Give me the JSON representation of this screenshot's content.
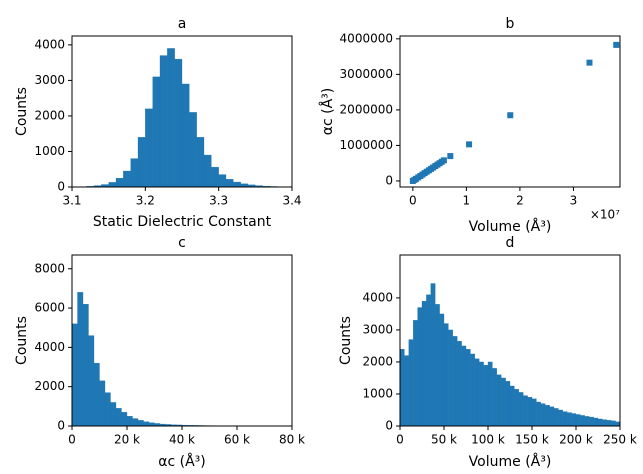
{
  "chart_data": [
    {
      "type": "histogram",
      "title": "a",
      "xlabel": "Static Dielectric Constant",
      "ylabel": "Counts",
      "color": "#1f77b4",
      "bins": [
        3.1,
        3.11,
        3.12,
        3.13,
        3.14,
        3.15,
        3.16,
        3.17,
        3.18,
        3.19,
        3.2,
        3.21,
        3.22,
        3.23,
        3.24,
        3.25,
        3.26,
        3.27,
        3.28,
        3.29,
        3.3,
        3.31,
        3.32,
        3.33,
        3.34,
        3.35,
        3.36,
        3.37,
        3.38,
        3.39,
        3.4
      ],
      "values": [
        5,
        10,
        20,
        40,
        70,
        130,
        250,
        450,
        800,
        1400,
        2200,
        3100,
        3700,
        3900,
        3600,
        2900,
        2100,
        1400,
        900,
        560,
        350,
        220,
        140,
        90,
        60,
        40,
        25,
        15,
        10,
        5
      ],
      "xlim": [
        3.1,
        3.4
      ],
      "xticks": [
        3.1,
        3.2,
        3.3,
        3.4
      ],
      "ylim": [
        0,
        4250
      ],
      "yticks": [
        0,
        1000,
        2000,
        3000,
        4000
      ]
    },
    {
      "type": "scatter",
      "title": "b",
      "xlabel": "Volume (Å³)",
      "ylabel": "αc (Å³)",
      "annotation": "×10⁷",
      "color": "#1f77b4",
      "x": [
        0,
        300000,
        600000,
        1000000,
        1400000,
        1800000,
        2200000,
        2600000,
        3000000,
        3400000,
        3800000,
        4200000,
        4600000,
        5000000,
        5400000,
        5800000,
        7000000,
        10500000,
        18200000,
        33000000,
        38000000
      ],
      "y": [
        0,
        30000,
        60000,
        100000,
        140000,
        180000,
        220000,
        260000,
        300000,
        340000,
        380000,
        420000,
        460000,
        500000,
        540000,
        580000,
        700000,
        1030000,
        1850000,
        3330000,
        3830000
      ],
      "xlim": [
        -2400000,
        38700000
      ],
      "xticks": [
        0,
        {
          "value": 10000000,
          "label": "1"
        },
        {
          "value": 20000000,
          "label": "2"
        },
        {
          "value": 30000000,
          "label": "3"
        }
      ],
      "ylim": [
        -170000,
        4080000
      ],
      "yticks": [
        0,
        1000000,
        2000000,
        3000000,
        4000000
      ]
    },
    {
      "type": "histogram",
      "title": "c",
      "xlabel": "αc (Å³)",
      "ylabel": "Counts",
      "color": "#1f77b4",
      "bins": [
        0,
        2000,
        4000,
        6000,
        8000,
        10000,
        12000,
        14000,
        16000,
        18000,
        20000,
        22000,
        24000,
        26000,
        28000,
        30000,
        32000,
        34000,
        36000,
        38000,
        40000,
        42000,
        44000,
        46000,
        48000,
        50000,
        52000,
        54000,
        56000,
        58000,
        60000,
        62000,
        64000,
        66000,
        68000,
        70000,
        72000,
        74000,
        76000,
        78000,
        80000
      ],
      "values": [
        5200,
        6800,
        6200,
        4600,
        3200,
        2300,
        1700,
        1200,
        900,
        700,
        500,
        380,
        290,
        220,
        170,
        130,
        100,
        80,
        65,
        55,
        45,
        38,
        32,
        27,
        23,
        20,
        17,
        14,
        12,
        10,
        8,
        7,
        6,
        5,
        4,
        3,
        3,
        2,
        2,
        1
      ],
      "xlim": [
        0,
        80000
      ],
      "xticks": [
        0,
        {
          "value": 20000,
          "label": "20 k"
        },
        {
          "value": 40000,
          "label": "40 k"
        },
        {
          "value": 60000,
          "label": "60 k"
        },
        {
          "value": 80000,
          "label": "80 k"
        }
      ],
      "ylim": [
        0,
        8700
      ],
      "yticks": [
        0,
        2000,
        4000,
        6000,
        8000
      ]
    },
    {
      "type": "histogram",
      "title": "d",
      "xlabel": "Volume (Å³)",
      "ylabel": "Counts",
      "color": "#1f77b4",
      "bins": [
        0,
        5000,
        10000,
        15000,
        20000,
        25000,
        30000,
        35000,
        40000,
        45000,
        50000,
        55000,
        60000,
        65000,
        70000,
        75000,
        80000,
        85000,
        90000,
        95000,
        100000,
        105000,
        110000,
        115000,
        120000,
        125000,
        130000,
        135000,
        140000,
        145000,
        150000,
        155000,
        160000,
        165000,
        170000,
        175000,
        180000,
        185000,
        190000,
        195000,
        200000,
        205000,
        210000,
        215000,
        220000,
        225000,
        230000,
        235000,
        240000,
        245000,
        250000
      ],
      "values": [
        2400,
        2200,
        2700,
        3300,
        3700,
        3900,
        4100,
        4450,
        3800,
        3500,
        3200,
        3000,
        2800,
        2650,
        2500,
        2400,
        2250,
        2100,
        2000,
        1900,
        2000,
        1800,
        1600,
        1500,
        1400,
        1250,
        1150,
        1050,
        950,
        900,
        850,
        750,
        700,
        650,
        600,
        550,
        500,
        450,
        420,
        390,
        360,
        330,
        300,
        280,
        250,
        220,
        200,
        180,
        160,
        130
      ],
      "xlim": [
        0,
        250000
      ],
      "xticks": [
        0,
        {
          "value": 50000,
          "label": "50 k"
        },
        {
          "value": 100000,
          "label": "100 k"
        },
        {
          "value": 150000,
          "label": "150 k"
        },
        {
          "value": 200000,
          "label": "200 k"
        },
        {
          "value": 250000,
          "label": "250 k"
        }
      ],
      "ylim": [
        0,
        5340
      ],
      "yticks": [
        0,
        1000,
        2000,
        3000,
        4000
      ]
    }
  ]
}
